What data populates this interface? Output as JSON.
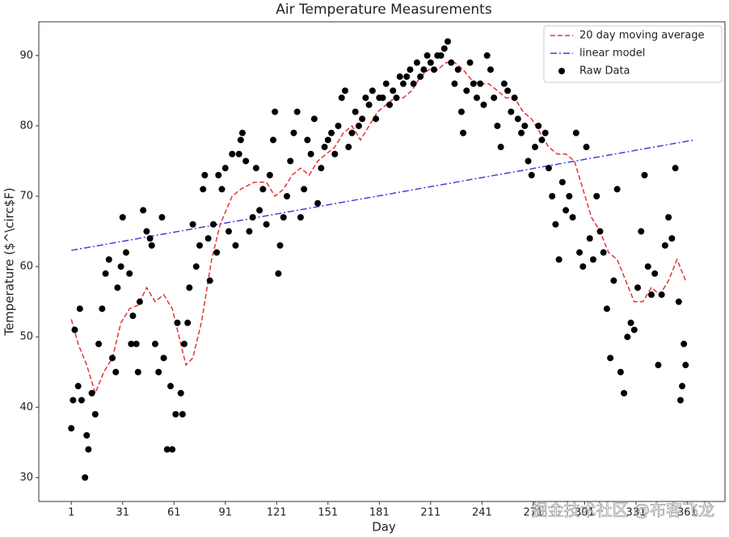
{
  "chart_data": {
    "type": "scatter",
    "title": "Air Temperature Measurements",
    "x_label": "Day",
    "y_label": "Temperature ($^\\circ$F)",
    "watermark": "掘金技术社区 @布客飞龙",
    "xlim": [
      -18,
      383
    ],
    "ylim": [
      26.6,
      94.8
    ],
    "xticks": [
      1,
      31,
      61,
      91,
      121,
      151,
      181,
      211,
      241,
      271,
      301,
      331,
      361
    ],
    "yticks": [
      30,
      40,
      50,
      60,
      70,
      80,
      90
    ],
    "legend": "upper right",
    "series": [
      {
        "name": "20 day moving average",
        "kind": "line",
        "linestyle": "dashed",
        "color": "#e03535",
        "x": [
          1,
          5,
          10,
          15,
          20,
          25,
          30,
          35,
          40,
          45,
          50,
          55,
          60,
          65,
          68,
          72,
          77,
          83,
          88,
          95,
          100,
          108,
          115,
          120,
          125,
          130,
          135,
          140,
          145,
          150,
          155,
          160,
          165,
          170,
          175,
          180,
          185,
          190,
          195,
          200,
          205,
          210,
          215,
          220,
          225,
          230,
          235,
          240,
          245,
          250,
          255,
          260,
          265,
          270,
          275,
          280,
          285,
          290,
          295,
          300,
          305,
          310,
          315,
          320,
          325,
          330,
          335,
          340,
          345,
          350,
          355,
          360
        ],
        "values": [
          52.5,
          49,
          46,
          42,
          45,
          47,
          52,
          54,
          54.5,
          57,
          55,
          56,
          54,
          49,
          46,
          47,
          52,
          61,
          66,
          70,
          71,
          72,
          72,
          70,
          71,
          73,
          74,
          73,
          75,
          76,
          77,
          79,
          80,
          78,
          80,
          82,
          83,
          84,
          84,
          85,
          87,
          88,
          88,
          89,
          89,
          88,
          86.5,
          86,
          86,
          85,
          84,
          84,
          82,
          81,
          79,
          77,
          76,
          76,
          75,
          71,
          67,
          65,
          62,
          61,
          58,
          55,
          55,
          57,
          56,
          58,
          61,
          58
        ]
      },
      {
        "name": "linear model",
        "kind": "line",
        "linestyle": "dashdot",
        "color": "#4040e0",
        "x": [
          1,
          365
        ],
        "values": [
          62.3,
          78
        ]
      },
      {
        "name": "Raw Data",
        "kind": "scatter",
        "color": "#000000",
        "x": [
          1,
          2,
          3,
          5,
          6,
          7,
          9,
          10,
          11,
          13,
          15,
          17,
          19,
          21,
          23,
          25,
          27,
          28,
          30,
          31,
          33,
          35,
          36,
          37,
          39,
          40,
          41,
          43,
          45,
          47,
          48,
          50,
          52,
          54,
          55,
          57,
          59,
          60,
          62,
          63,
          65,
          66,
          67,
          69,
          70,
          72,
          74,
          76,
          78,
          79,
          81,
          82,
          84,
          86,
          87,
          89,
          91,
          93,
          95,
          97,
          99,
          100,
          101,
          103,
          105,
          107,
          109,
          111,
          113,
          115,
          117,
          119,
          120,
          122,
          123,
          125,
          127,
          129,
          131,
          133,
          135,
          137,
          139,
          141,
          143,
          145,
          147,
          149,
          151,
          153,
          155,
          157,
          159,
          161,
          163,
          165,
          167,
          169,
          171,
          173,
          175,
          177,
          179,
          181,
          183,
          185,
          187,
          189,
          191,
          193,
          195,
          197,
          199,
          201,
          203,
          205,
          207,
          209,
          211,
          213,
          215,
          217,
          219,
          221,
          223,
          225,
          227,
          229,
          230,
          232,
          234,
          236,
          238,
          240,
          242,
          244,
          246,
          248,
          250,
          252,
          254,
          256,
          258,
          260,
          262,
          264,
          266,
          268,
          270,
          272,
          274,
          276,
          278,
          280,
          282,
          284,
          286,
          288,
          290,
          292,
          294,
          296,
          298,
          300,
          302,
          304,
          306,
          308,
          310,
          312,
          314,
          316,
          318,
          320,
          322,
          324,
          326,
          328,
          330,
          332,
          334,
          336,
          338,
          340,
          342,
          344,
          346,
          348,
          350,
          352,
          354,
          356,
          357,
          358,
          359,
          360
        ],
        "values": [
          37,
          41,
          51,
          43,
          54,
          41,
          30,
          36,
          34,
          42,
          39,
          49,
          54,
          59,
          61,
          47,
          45,
          57,
          60,
          67,
          62,
          59,
          49,
          53,
          49,
          45,
          55,
          68,
          65,
          64,
          63,
          49,
          45,
          67,
          47,
          34,
          43,
          34,
          39,
          52,
          42,
          39,
          49,
          52,
          57,
          66,
          60,
          63,
          71,
          73,
          64,
          58,
          66,
          62,
          73,
          71,
          74,
          65,
          76,
          63,
          76,
          78,
          79,
          75,
          65,
          67,
          74,
          68,
          71,
          66,
          73,
          78,
          82,
          59,
          63,
          67,
          70,
          75,
          79,
          82,
          67,
          71,
          78,
          76,
          81,
          69,
          74,
          77,
          78,
          79,
          76,
          80,
          84,
          85,
          77,
          79,
          82,
          80,
          81,
          84,
          83,
          85,
          81,
          84,
          84,
          86,
          83,
          85,
          84,
          87,
          86,
          87,
          88,
          86,
          89,
          87,
          88,
          90,
          89,
          88,
          90,
          90,
          91,
          92,
          89,
          86,
          88,
          82,
          79,
          85,
          89,
          86,
          84,
          86,
          83,
          90,
          88,
          84,
          80,
          77,
          86,
          85,
          82,
          84,
          81,
          79,
          80,
          75,
          73,
          77,
          80,
          78,
          79,
          74,
          70,
          66,
          61,
          72,
          68,
          70,
          67,
          79,
          62,
          60,
          77,
          64,
          61,
          70,
          65,
          62,
          54,
          47,
          58,
          71,
          45,
          42,
          50,
          52,
          51,
          57,
          65,
          73,
          60,
          56,
          59,
          46,
          56,
          63,
          67,
          64,
          74,
          55,
          41,
          43,
          49,
          46
        ]
      }
    ]
  }
}
